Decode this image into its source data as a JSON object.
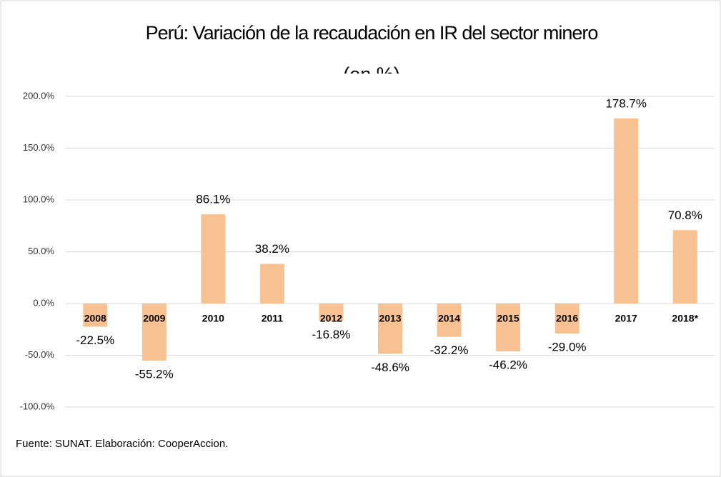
{
  "chart_data": {
    "type": "bar",
    "title": "Perú: Variación de la recaudación en IR del sector minero",
    "subtitle": "(en %)",
    "categories": [
      "2008",
      "2009",
      "2010",
      "2011",
      "2012",
      "2013",
      "2014",
      "2015",
      "2016",
      "2017",
      "2018*"
    ],
    "values": [
      -22.5,
      -55.2,
      86.1,
      38.2,
      -16.8,
      -48.6,
      -32.2,
      -46.2,
      -29.0,
      178.7,
      70.8
    ],
    "value_labels": [
      "-22.5%",
      "-55.2%",
      "86.1%",
      "38.2%",
      "-16.8%",
      "-48.6%",
      "-32.2%",
      "-46.2%",
      "-29.0%",
      "178.7%",
      "70.8%"
    ],
    "color": "#f8c192",
    "ylim": [
      -100,
      200
    ],
    "yticks": [
      {
        "value": -100,
        "label": "-100.0%"
      },
      {
        "value": -50,
        "label": "-50.0%"
      },
      {
        "value": 0,
        "label": "0.0%"
      },
      {
        "value": 50,
        "label": "50.0%"
      },
      {
        "value": 100,
        "label": "100.0%"
      },
      {
        "value": 150,
        "label": "150.0%"
      },
      {
        "value": 200,
        "label": "200.0%"
      }
    ],
    "grid": true,
    "source": "Fuente: SUNAT. Elaboración: CooperAccion."
  }
}
